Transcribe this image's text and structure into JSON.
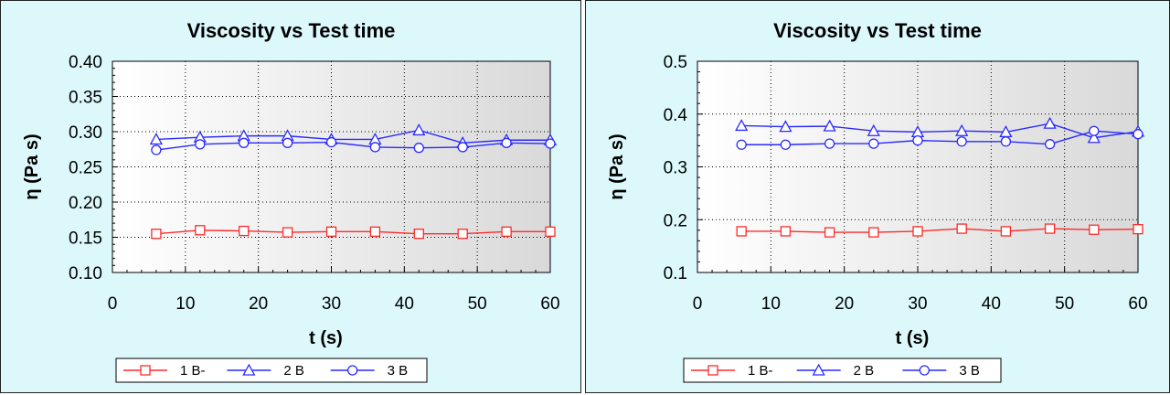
{
  "chart_data": [
    {
      "type": "line",
      "title": "Viscosity vs Test time",
      "xlabel": "t (s)",
      "ylabel": "η (Pa s)",
      "xlim": [
        0,
        60
      ],
      "ylim": [
        0.1,
        0.4
      ],
      "xticks": [
        0,
        10,
        20,
        30,
        40,
        50,
        60
      ],
      "yticks": [
        0.1,
        0.15,
        0.2,
        0.25,
        0.3,
        0.35,
        0.4
      ],
      "ytick_labels": [
        "0.10",
        "0.15",
        "0.20",
        "0.25",
        "0.30",
        "0.35",
        "0.40"
      ],
      "grid": true,
      "legend_position": "bottom",
      "x": [
        6,
        12,
        18,
        24,
        30,
        36,
        42,
        48,
        54,
        60
      ],
      "series": [
        {
          "name": "1 B-",
          "marker": "square",
          "color": "#ff2a2a",
          "values": [
            0.155,
            0.16,
            0.159,
            0.157,
            0.158,
            0.158,
            0.155,
            0.155,
            0.158,
            0.158
          ]
        },
        {
          "name": "2 B",
          "marker": "triangle",
          "color": "#2a2aff",
          "values": [
            0.289,
            0.292,
            0.294,
            0.294,
            0.289,
            0.289,
            0.302,
            0.284,
            0.288,
            0.288
          ]
        },
        {
          "name": "3 B",
          "marker": "circle",
          "color": "#2a2aff",
          "values": [
            0.274,
            0.282,
            0.284,
            0.284,
            0.285,
            0.278,
            0.277,
            0.278,
            0.284,
            0.283
          ]
        }
      ]
    },
    {
      "type": "line",
      "title": "Viscosity vs Test time",
      "xlabel": "t (s)",
      "ylabel": "η (Pa s)",
      "xlim": [
        0,
        60
      ],
      "ylim": [
        0.1,
        0.5
      ],
      "xticks": [
        0,
        10,
        20,
        30,
        40,
        50,
        60
      ],
      "yticks": [
        0.1,
        0.2,
        0.3,
        0.4,
        0.5
      ],
      "ytick_labels": [
        "0.1",
        "0.2",
        "0.3",
        "0.4",
        "0.5"
      ],
      "grid": true,
      "legend_position": "bottom",
      "x": [
        6,
        12,
        18,
        24,
        30,
        36,
        42,
        48,
        54,
        60
      ],
      "series": [
        {
          "name": "1 B-",
          "marker": "square",
          "color": "#ff2a2a",
          "values": [
            0.178,
            0.178,
            0.176,
            0.176,
            0.178,
            0.183,
            0.178,
            0.183,
            0.181,
            0.182
          ]
        },
        {
          "name": "2 B",
          "marker": "triangle",
          "color": "#2a2aff",
          "values": [
            0.378,
            0.376,
            0.377,
            0.368,
            0.366,
            0.368,
            0.366,
            0.382,
            0.355,
            0.367
          ]
        },
        {
          "name": "3 B",
          "marker": "circle",
          "color": "#2a2aff",
          "values": [
            0.342,
            0.342,
            0.344,
            0.344,
            0.35,
            0.348,
            0.348,
            0.343,
            0.368,
            0.362
          ]
        }
      ]
    }
  ]
}
